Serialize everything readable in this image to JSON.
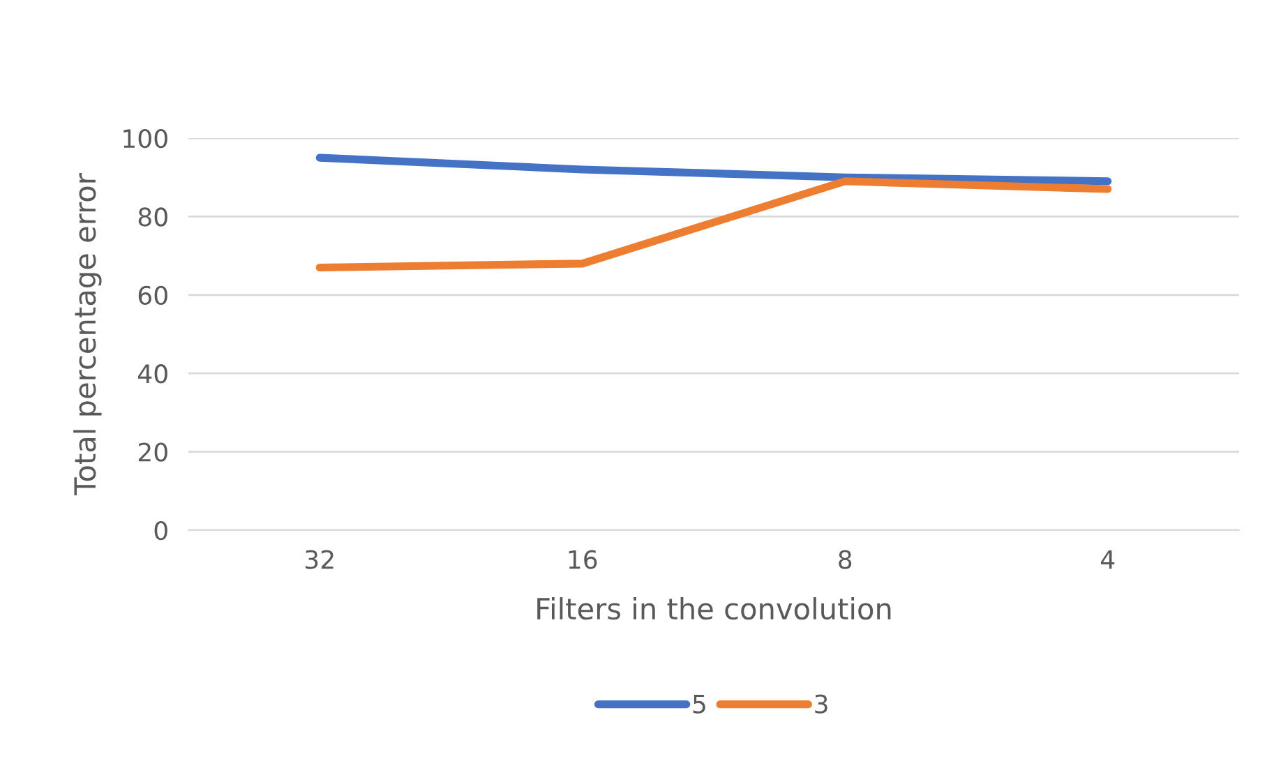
{
  "chart_data": {
    "type": "line",
    "xlabel": "Filters in the convolution",
    "ylabel": "Total percentage error",
    "categories": [
      "32",
      "16",
      "8",
      "4"
    ],
    "series": [
      {
        "name": "5",
        "color": "#4472c4",
        "values": [
          95,
          92,
          90,
          89
        ]
      },
      {
        "name": "3",
        "color": "#ed7d31",
        "values": [
          67,
          68,
          89,
          87
        ]
      }
    ],
    "ylim": [
      0,
      100
    ],
    "yticks": [
      0,
      20,
      40,
      60,
      80,
      100
    ],
    "grid": "y",
    "legend": "bottom",
    "marker": "none",
    "line_style": "solid"
  }
}
